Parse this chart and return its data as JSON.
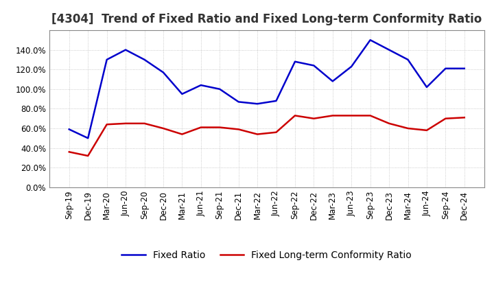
{
  "title": "[4304]  Trend of Fixed Ratio and Fixed Long-term Conformity Ratio",
  "x_labels": [
    "Sep-19",
    "Dec-19",
    "Mar-20",
    "Jun-20",
    "Sep-20",
    "Dec-20",
    "Mar-21",
    "Jun-21",
    "Sep-21",
    "Dec-21",
    "Mar-22",
    "Jun-22",
    "Sep-22",
    "Dec-22",
    "Mar-23",
    "Jun-23",
    "Sep-23",
    "Dec-23",
    "Mar-24",
    "Jun-24",
    "Sep-24",
    "Dec-24"
  ],
  "fixed_ratio": [
    59.0,
    50.0,
    130.0,
    140.0,
    130.0,
    117.0,
    95.0,
    104.0,
    100.0,
    87.0,
    85.0,
    88.0,
    128.0,
    124.0,
    108.0,
    123.0,
    150.0,
    140.0,
    130.0,
    102.0,
    121.0,
    121.0
  ],
  "fixed_lt_ratio": [
    36.0,
    32.0,
    64.0,
    65.0,
    65.0,
    60.0,
    54.0,
    61.0,
    61.0,
    59.0,
    54.0,
    56.0,
    73.0,
    70.0,
    73.0,
    73.0,
    73.0,
    65.0,
    60.0,
    58.0,
    70.0,
    71.0
  ],
  "fixed_ratio_color": "#0000cc",
  "fixed_lt_ratio_color": "#cc0000",
  "ylim": [
    0,
    160
  ],
  "yticks": [
    0,
    20,
    40,
    60,
    80,
    100,
    120,
    140
  ],
  "background_color": "#ffffff",
  "plot_bg_color": "#ffffff",
  "grid_color": "#aaaaaa",
  "title_fontsize": 12,
  "legend_fontsize": 10,
  "tick_fontsize": 8.5,
  "linewidth": 1.8
}
